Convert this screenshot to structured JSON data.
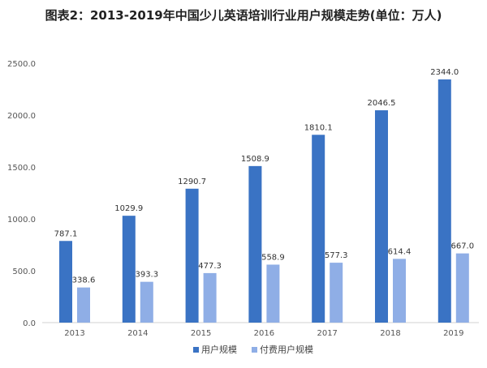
{
  "chart_data": {
    "type": "bar",
    "title": "图表2：2013-2019年中国少儿英语培训行业用户规模走势(单位：万人)",
    "categories": [
      "2013",
      "2014",
      "2015",
      "2016",
      "2017",
      "2018",
      "2019"
    ],
    "series": [
      {
        "name": "用户规模",
        "color": "#3A73C4",
        "values": [
          787.1,
          1029.9,
          1290.7,
          1508.9,
          1810.1,
          2046.5,
          2344.0
        ]
      },
      {
        "name": "付费用户规模",
        "color": "#8FAEE6",
        "values": [
          338.6,
          393.3,
          477.3,
          558.9,
          577.3,
          614.4,
          667.0
        ]
      }
    ],
    "ylim": [
      0,
      2500
    ],
    "yticks": [
      "0.0",
      "500.0",
      "1000.0",
      "1500.0",
      "2000.0",
      "2500.0"
    ],
    "grid": false,
    "legend": "bottom",
    "data_labels": true,
    "xlabel": "",
    "ylabel": ""
  }
}
